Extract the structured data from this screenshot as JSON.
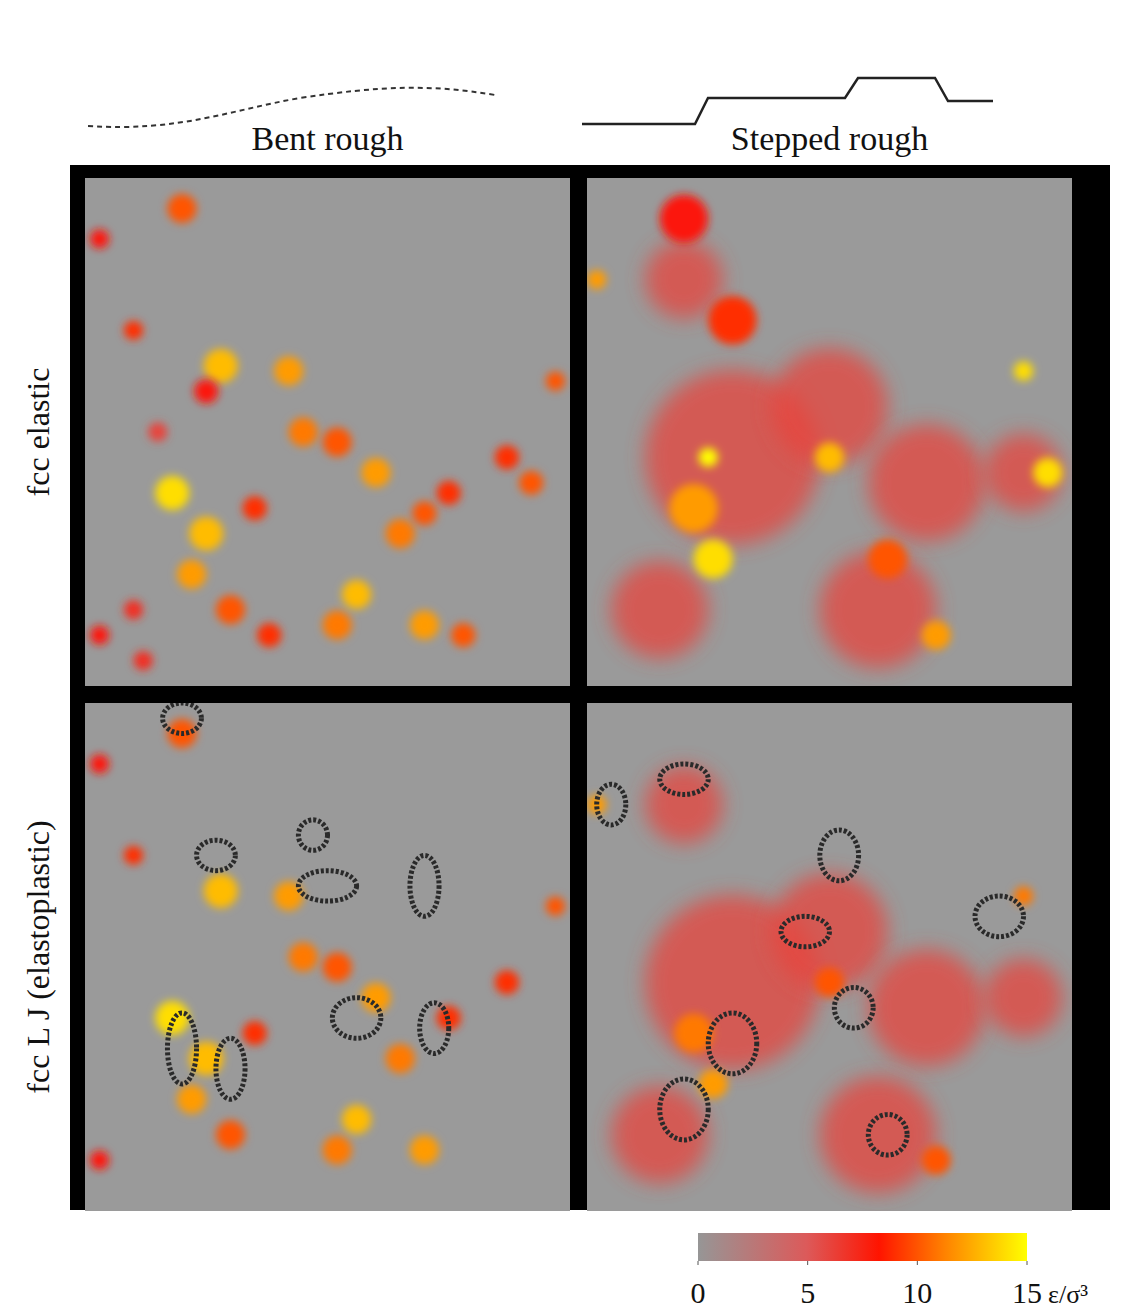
{
  "chart_data": {
    "type": "heatmap_panels",
    "columns": [
      "Bent rough",
      "Stepped rough"
    ],
    "rows": [
      "fcc elastic",
      "fcc L J (elastoplastic)"
    ],
    "colorbar": {
      "range": [
        0,
        15
      ],
      "ticks": [
        0,
        5,
        10,
        15
      ],
      "unit": "ε/σ³"
    },
    "panels": [
      {
        "row": 0,
        "col": 0,
        "hotspots": [
          {
            "x": 0.2,
            "y": 0.06,
            "r": 0.03,
            "value": 10
          },
          {
            "x": 0.03,
            "y": 0.12,
            "r": 0.02,
            "value": 8
          },
          {
            "x": 0.1,
            "y": 0.3,
            "r": 0.02,
            "value": 9
          },
          {
            "x": 0.28,
            "y": 0.37,
            "r": 0.035,
            "value": 13
          },
          {
            "x": 0.42,
            "y": 0.38,
            "r": 0.03,
            "value": 12
          },
          {
            "x": 0.25,
            "y": 0.42,
            "r": 0.025,
            "value": 8
          },
          {
            "x": 0.45,
            "y": 0.5,
            "r": 0.03,
            "value": 11
          },
          {
            "x": 0.52,
            "y": 0.52,
            "r": 0.03,
            "value": 10
          },
          {
            "x": 0.6,
            "y": 0.58,
            "r": 0.03,
            "value": 12
          },
          {
            "x": 0.65,
            "y": 0.7,
            "r": 0.03,
            "value": 11
          },
          {
            "x": 0.7,
            "y": 0.66,
            "r": 0.025,
            "value": 10
          },
          {
            "x": 0.75,
            "y": 0.62,
            "r": 0.025,
            "value": 9
          },
          {
            "x": 0.18,
            "y": 0.62,
            "r": 0.035,
            "value": 14
          },
          {
            "x": 0.25,
            "y": 0.7,
            "r": 0.035,
            "value": 13
          },
          {
            "x": 0.22,
            "y": 0.78,
            "r": 0.03,
            "value": 12
          },
          {
            "x": 0.3,
            "y": 0.85,
            "r": 0.03,
            "value": 10
          },
          {
            "x": 0.38,
            "y": 0.9,
            "r": 0.025,
            "value": 9
          },
          {
            "x": 0.52,
            "y": 0.88,
            "r": 0.03,
            "value": 11
          },
          {
            "x": 0.56,
            "y": 0.82,
            "r": 0.03,
            "value": 13
          },
          {
            "x": 0.7,
            "y": 0.88,
            "r": 0.03,
            "value": 12
          },
          {
            "x": 0.78,
            "y": 0.9,
            "r": 0.025,
            "value": 10
          },
          {
            "x": 0.87,
            "y": 0.55,
            "r": 0.025,
            "value": 9
          },
          {
            "x": 0.92,
            "y": 0.6,
            "r": 0.025,
            "value": 10
          },
          {
            "x": 0.97,
            "y": 0.4,
            "r": 0.02,
            "value": 10
          },
          {
            "x": 0.03,
            "y": 0.9,
            "r": 0.02,
            "value": 8
          },
          {
            "x": 0.1,
            "y": 0.85,
            "r": 0.02,
            "value": 7
          },
          {
            "x": 0.35,
            "y": 0.65,
            "r": 0.025,
            "value": 9
          },
          {
            "x": 0.15,
            "y": 0.5,
            "r": 0.02,
            "value": 6
          },
          {
            "x": 0.12,
            "y": 0.95,
            "r": 0.02,
            "value": 7
          }
        ],
        "loops": []
      },
      {
        "row": 0,
        "col": 1,
        "hotspots": [
          {
            "x": 0.3,
            "y": 0.55,
            "r": 0.18,
            "value": 6
          },
          {
            "x": 0.5,
            "y": 0.45,
            "r": 0.12,
            "value": 6
          },
          {
            "x": 0.7,
            "y": 0.6,
            "r": 0.12,
            "value": 6
          },
          {
            "x": 0.2,
            "y": 0.2,
            "r": 0.08,
            "value": 6
          },
          {
            "x": 0.9,
            "y": 0.58,
            "r": 0.08,
            "value": 6
          },
          {
            "x": 0.6,
            "y": 0.85,
            "r": 0.12,
            "value": 6
          },
          {
            "x": 0.15,
            "y": 0.85,
            "r": 0.1,
            "value": 6
          },
          {
            "x": 0.2,
            "y": 0.08,
            "r": 0.05,
            "value": 8
          },
          {
            "x": 0.3,
            "y": 0.28,
            "r": 0.05,
            "value": 9
          },
          {
            "x": 0.22,
            "y": 0.65,
            "r": 0.05,
            "value": 12
          },
          {
            "x": 0.26,
            "y": 0.75,
            "r": 0.04,
            "value": 14
          },
          {
            "x": 0.5,
            "y": 0.55,
            "r": 0.03,
            "value": 13
          },
          {
            "x": 0.62,
            "y": 0.75,
            "r": 0.04,
            "value": 10
          },
          {
            "x": 0.72,
            "y": 0.9,
            "r": 0.03,
            "value": 12
          },
          {
            "x": 0.9,
            "y": 0.38,
            "r": 0.02,
            "value": 14
          },
          {
            "x": 0.95,
            "y": 0.58,
            "r": 0.03,
            "value": 14
          },
          {
            "x": 0.02,
            "y": 0.2,
            "r": 0.02,
            "value": 12
          },
          {
            "x": 0.25,
            "y": 0.55,
            "r": 0.02,
            "value": 15
          }
        ],
        "loops": []
      },
      {
        "row": 1,
        "col": 0,
        "hotspots": [
          {
            "x": 0.2,
            "y": 0.06,
            "r": 0.03,
            "value": 10
          },
          {
            "x": 0.03,
            "y": 0.12,
            "r": 0.02,
            "value": 8
          },
          {
            "x": 0.1,
            "y": 0.3,
            "r": 0.02,
            "value": 9
          },
          {
            "x": 0.28,
            "y": 0.37,
            "r": 0.035,
            "value": 13
          },
          {
            "x": 0.42,
            "y": 0.38,
            "r": 0.03,
            "value": 12
          },
          {
            "x": 0.45,
            "y": 0.5,
            "r": 0.03,
            "value": 11
          },
          {
            "x": 0.52,
            "y": 0.52,
            "r": 0.03,
            "value": 10
          },
          {
            "x": 0.6,
            "y": 0.58,
            "r": 0.03,
            "value": 12
          },
          {
            "x": 0.65,
            "y": 0.7,
            "r": 0.03,
            "value": 11
          },
          {
            "x": 0.75,
            "y": 0.62,
            "r": 0.025,
            "value": 9
          },
          {
            "x": 0.18,
            "y": 0.62,
            "r": 0.035,
            "value": 14
          },
          {
            "x": 0.25,
            "y": 0.7,
            "r": 0.035,
            "value": 13
          },
          {
            "x": 0.22,
            "y": 0.78,
            "r": 0.03,
            "value": 12
          },
          {
            "x": 0.3,
            "y": 0.85,
            "r": 0.03,
            "value": 10
          },
          {
            "x": 0.52,
            "y": 0.88,
            "r": 0.03,
            "value": 11
          },
          {
            "x": 0.56,
            "y": 0.82,
            "r": 0.03,
            "value": 13
          },
          {
            "x": 0.7,
            "y": 0.88,
            "r": 0.03,
            "value": 12
          },
          {
            "x": 0.87,
            "y": 0.55,
            "r": 0.025,
            "value": 9
          },
          {
            "x": 0.97,
            "y": 0.4,
            "r": 0.02,
            "value": 10
          },
          {
            "x": 0.03,
            "y": 0.9,
            "r": 0.02,
            "value": 8
          },
          {
            "x": 0.35,
            "y": 0.65,
            "r": 0.025,
            "value": 9
          }
        ],
        "loops": [
          {
            "x": 0.2,
            "y": 0.03,
            "rx": 0.04,
            "ry": 0.03
          },
          {
            "x": 0.27,
            "y": 0.3,
            "rx": 0.04,
            "ry": 0.03
          },
          {
            "x": 0.5,
            "y": 0.36,
            "rx": 0.06,
            "ry": 0.03
          },
          {
            "x": 0.7,
            "y": 0.36,
            "rx": 0.03,
            "ry": 0.06
          },
          {
            "x": 0.2,
            "y": 0.68,
            "rx": 0.03,
            "ry": 0.07
          },
          {
            "x": 0.3,
            "y": 0.72,
            "rx": 0.03,
            "ry": 0.06
          },
          {
            "x": 0.56,
            "y": 0.62,
            "rx": 0.05,
            "ry": 0.04
          },
          {
            "x": 0.72,
            "y": 0.64,
            "rx": 0.03,
            "ry": 0.05
          },
          {
            "x": 0.47,
            "y": 0.26,
            "rx": 0.03,
            "ry": 0.03
          }
        ]
      },
      {
        "row": 1,
        "col": 1,
        "hotspots": [
          {
            "x": 0.3,
            "y": 0.55,
            "r": 0.18,
            "value": 6
          },
          {
            "x": 0.5,
            "y": 0.45,
            "r": 0.12,
            "value": 6
          },
          {
            "x": 0.7,
            "y": 0.6,
            "r": 0.12,
            "value": 6
          },
          {
            "x": 0.2,
            "y": 0.2,
            "r": 0.08,
            "value": 6
          },
          {
            "x": 0.9,
            "y": 0.58,
            "r": 0.08,
            "value": 6
          },
          {
            "x": 0.6,
            "y": 0.85,
            "r": 0.12,
            "value": 6
          },
          {
            "x": 0.15,
            "y": 0.85,
            "r": 0.1,
            "value": 6
          },
          {
            "x": 0.22,
            "y": 0.65,
            "r": 0.04,
            "value": 11
          },
          {
            "x": 0.26,
            "y": 0.75,
            "r": 0.03,
            "value": 12
          },
          {
            "x": 0.5,
            "y": 0.55,
            "r": 0.03,
            "value": 10
          },
          {
            "x": 0.72,
            "y": 0.9,
            "r": 0.03,
            "value": 10
          },
          {
            "x": 0.9,
            "y": 0.38,
            "r": 0.02,
            "value": 11
          },
          {
            "x": 0.02,
            "y": 0.2,
            "r": 0.02,
            "value": 12
          }
        ],
        "loops": [
          {
            "x": 0.2,
            "y": 0.15,
            "rx": 0.05,
            "ry": 0.03
          },
          {
            "x": 0.2,
            "y": 0.8,
            "rx": 0.05,
            "ry": 0.06
          },
          {
            "x": 0.3,
            "y": 0.67,
            "rx": 0.05,
            "ry": 0.06
          },
          {
            "x": 0.45,
            "y": 0.45,
            "rx": 0.05,
            "ry": 0.03
          },
          {
            "x": 0.52,
            "y": 0.3,
            "rx": 0.04,
            "ry": 0.05
          },
          {
            "x": 0.55,
            "y": 0.6,
            "rx": 0.04,
            "ry": 0.04
          },
          {
            "x": 0.85,
            "y": 0.42,
            "rx": 0.05,
            "ry": 0.04
          },
          {
            "x": 0.62,
            "y": 0.85,
            "rx": 0.04,
            "ry": 0.04
          },
          {
            "x": 0.05,
            "y": 0.2,
            "rx": 0.03,
            "ry": 0.04
          }
        ]
      }
    ]
  }
}
